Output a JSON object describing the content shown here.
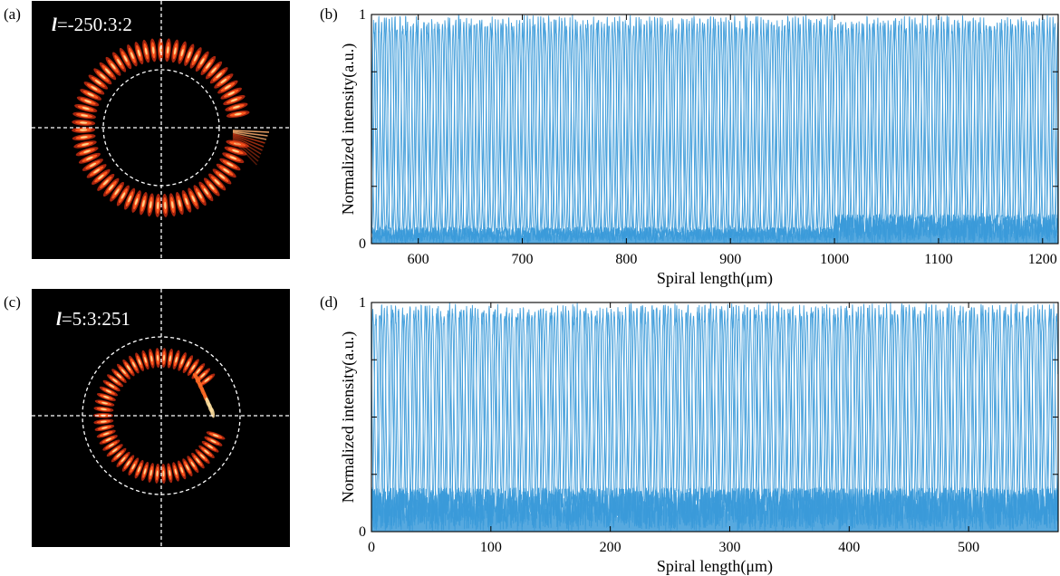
{
  "panels": {
    "a": {
      "tag": "(a)",
      "l_symbol": "l",
      "l_value": "=-250:3:2"
    },
    "b": {
      "tag": "(b)"
    },
    "c": {
      "tag": "(c)",
      "l_symbol": "l",
      "l_value": "=5:3:251"
    },
    "d": {
      "tag": "(d)"
    }
  },
  "colors": {
    "trace": "#3a9ad9",
    "ring_hot": "#ff5a1f",
    "ring_core": "#ffd28a",
    "background_dark": "#000000"
  },
  "chart_data": [
    {
      "panel": "b",
      "type": "line",
      "xlabel": "Spiral length(μm)",
      "ylabel": "Normalized intensity(a.u.)",
      "xlim": [
        555,
        1215
      ],
      "ylim": [
        0,
        1
      ],
      "x_ticks": [
        600,
        700,
        800,
        900,
        1000,
        1100,
        1200
      ],
      "y_tick_labels": [
        {
          "value": 0,
          "label": "0"
        },
        {
          "value": 1,
          "label": "1"
        }
      ],
      "grid": false,
      "pattern": {
        "description_free": true,
        "peak_value": 1.0,
        "noise_floor": 0.08,
        "peak_spacing": 10.2,
        "peak_width": 3.2,
        "raised_noise_region": [
          1000,
          1215
        ]
      }
    },
    {
      "panel": "d",
      "type": "line",
      "xlabel": "Spiral length(μm)",
      "ylabel": "Normalized intensity(a.u.)",
      "xlim": [
        0,
        575
      ],
      "ylim": [
        0,
        1
      ],
      "x_ticks": [
        0,
        100,
        200,
        300,
        400,
        500
      ],
      "y_tick_labels": [
        {
          "value": 0,
          "label": "0"
        },
        {
          "value": 1,
          "label": "1"
        }
      ],
      "grid": false,
      "pattern": {
        "description_free": true,
        "peak_value": 1.0,
        "noise_floor": 0.12,
        "peak_spacing": 9.5,
        "peak_width": 3.0,
        "raised_noise_region": [
          0,
          575
        ]
      }
    }
  ]
}
